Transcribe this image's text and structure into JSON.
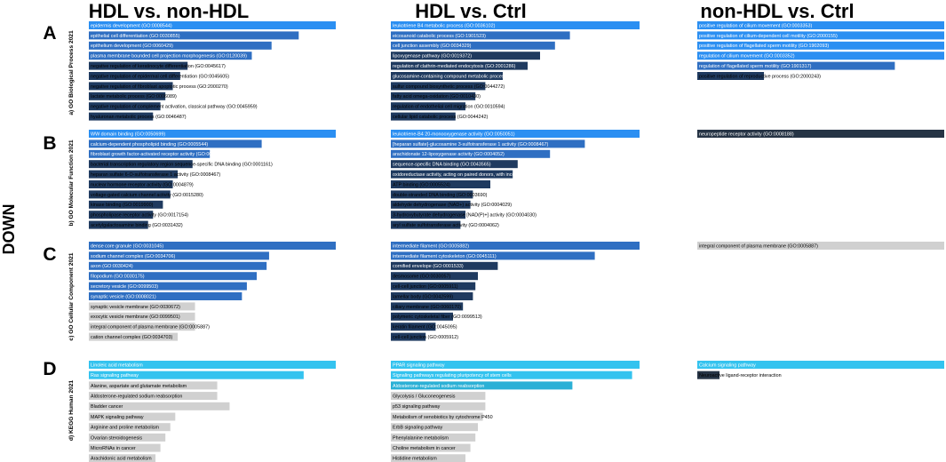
{
  "side_label": "DOWN",
  "column_headers": [
    "HDL vs. non-HDL",
    "HDL vs.  Ctrl",
    "non-HDL vs. Ctrl"
  ],
  "panels": [
    {
      "letter": "A",
      "title": "a) GO Biological Process 2021"
    },
    {
      "letter": "B",
      "title": "b) GO Molecular Function 2021"
    },
    {
      "letter": "C",
      "title": "c) GO Cellular Component 2021"
    },
    {
      "letter": "D",
      "title": "d) KEGG Human 2021"
    }
  ],
  "colors": {
    "bright": "#2b8ff2",
    "mid": "#2f6fc2",
    "dark": "#1f3a5f",
    "dark2": "#263445",
    "gray": "#d0d0d0",
    "kegg_bright": "#34c3ef",
    "kegg_mid": "#2bb0d6",
    "text_light": "#ffffff",
    "text_dark": "#000000"
  },
  "chart_data": [
    {
      "type": "bar",
      "orientation": "horizontal",
      "panel": "A",
      "column": "HDL vs. non-HDL",
      "title": "a) GO Biological Process 2021",
      "categories": [
        "epidermis development (GO:0008544)",
        "epithelial cell differentiation (GO:0030855)",
        "epithelium development (GO:0060429)",
        "plasma membrane bounded cell projection morphogenesis (GO:0120039)",
        "negative regulation of keratinocyte differentiation (GO:0045617)",
        "negative regulation of epidermal cell differentiation (GO:0045605)",
        "negative regulation of fibroblast apoptotic process (GO:2000270)",
        "lactate metabolic process (GO:0006089)",
        "negative regulation of complement activation, classical pathway (GO:0045959)",
        "hyaluronan metabolic process (GO:0046487)"
      ],
      "values": [
        100,
        85,
        74,
        66,
        40,
        37,
        34,
        31,
        29,
        26
      ],
      "color_keys": [
        "bright",
        "mid",
        "mid",
        "mid",
        "dark",
        "dark",
        "dark",
        "dark",
        "dark",
        "dark"
      ]
    },
    {
      "type": "bar",
      "orientation": "horizontal",
      "panel": "A",
      "column": "HDL vs.  Ctrl",
      "title": "a) GO Biological Process 2021",
      "categories": [
        "leukotriene B4 metabolic process (GO:0036102)",
        "eicosanoid catabolic process (GO:1901523)",
        "cell junction assembly (GO:0034329)",
        "lipoxygenase pathway (GO:0019372)",
        "regulation of clathrin-mediated endocytosis (GO:2001286)",
        "glucosamine-containing compound metabolic process (GO:1901071)",
        "sulfur compound biosynthetic process (GO:0044272)",
        "fatty acid omega-oxidation (GO:0010430)",
        "regulation of endothelial cell migration (GO:0010594)",
        "cellular lipid catabolic process (GO:0044242)"
      ],
      "values": [
        100,
        72,
        66,
        60,
        55,
        45,
        38,
        34,
        30,
        26
      ],
      "color_keys": [
        "bright",
        "mid",
        "mid",
        "dark",
        "dark",
        "dark",
        "dark",
        "dark",
        "dark",
        "dark"
      ]
    },
    {
      "type": "bar",
      "orientation": "horizontal",
      "panel": "A",
      "column": "non-HDL vs. Ctrl",
      "title": "a) GO Biological Process 2021",
      "categories": [
        "positive regulation of cilium movement (GO:0003353)",
        "positive regulation of cilium-dependent cell motility (GO:2000155)",
        "positive regulation of flagellated sperm motility (GO:1902093)",
        "regulation of cilium movement (GO:0003352)",
        "regulation of flagellated sperm motility (GO:1901317)",
        "positive regulation of reproductive process (GO:2000243)"
      ],
      "values": [
        100,
        100,
        100,
        100,
        80,
        27
      ],
      "color_keys": [
        "bright",
        "bright",
        "bright",
        "bright",
        "mid",
        "dark"
      ]
    },
    {
      "type": "bar",
      "orientation": "horizontal",
      "panel": "B",
      "column": "HDL vs. non-HDL",
      "title": "b) GO Molecular Function 2021",
      "categories": [
        "WW domain binding (GO:0050699)",
        "calcium-dependent phospholipid binding (GO:0005544)",
        "fibroblast growth factor-activated receptor activity (GO:0005007)",
        "bacterial transcription regulatory region sequence-specific DNA binding (GO:0001161)",
        "heparan sulfate 6-O-sulfotransferase 1 activity (GO:0008467)",
        "nuclear hormone receptor activity (GO:0004879)",
        "voltage-gated calcium channel activity (GO:0015280)",
        "kinase binding (GO:0019900)",
        "phospholipase receptor activity (GO:0017154)",
        "acetylgalactosamine binding (GO:0031432)"
      ],
      "values": [
        100,
        70,
        49,
        42,
        36,
        34,
        33,
        30,
        26,
        24
      ],
      "color_keys": [
        "bright",
        "mid",
        "mid",
        "dark",
        "dark",
        "dark",
        "dark",
        "dark",
        "dark",
        "dark"
      ]
    },
    {
      "type": "bar",
      "orientation": "horizontal",
      "panel": "B",
      "column": "HDL vs.  Ctrl",
      "title": "b) GO Molecular Function 2021",
      "categories": [
        "leukotriene-B4 20-monooxygenase activity (GO:0050051)",
        "[heparan sulfate]-glucosamine 3-sulfotransferase 1 activity (GO:0008467)",
        "arachidonate 12-lipoxygenase activity (GO:0004052)",
        "sequence-specific DNA binding (GO:0043565)",
        "oxidoreductase activity, acting on paired donors, with incorporation or reduction of molecular oxygen, NAD(P)H as one donor (GO:0016709)",
        "ATP binding (GO:0005524)",
        "double-stranded DNA binding (GO:0003690)",
        "aldehyde dehydrogenase (NAD+) activity (GO:0004029)",
        "3-hydroxybutyrate dehydrogenase [NAD(P)+] activity (GO:0004030)",
        "aryl sulfate sulfotransferase activity (GO:0004062)"
      ],
      "values": [
        100,
        78,
        64,
        51,
        49,
        40,
        33,
        32,
        30,
        28
      ],
      "color_keys": [
        "bright",
        "mid",
        "mid",
        "dark",
        "dark",
        "dark",
        "dark",
        "dark",
        "dark",
        "dark"
      ]
    },
    {
      "type": "bar",
      "orientation": "horizontal",
      "panel": "B",
      "column": "non-HDL vs. Ctrl",
      "title": "b) GO Molecular Function 2021",
      "categories": [
        "neuropeptide receptor activity (GO:0008188)"
      ],
      "values": [
        100
      ],
      "color_keys": [
        "dark2"
      ]
    },
    {
      "type": "bar",
      "orientation": "horizontal",
      "panel": "C",
      "column": "HDL vs. non-HDL",
      "title": "c) GO Cellular Component 2021",
      "categories": [
        "dense core granule (GO:0031045)",
        "sodium channel complex (GO:0034706)",
        "axon (GO:0030424)",
        "filopodium (GO:0030175)",
        "secretory vesicle (GO:0099503)",
        "synaptic vesicle (GO:0008021)",
        "synaptic vesicle membrane (GO:0030672)",
        "exocytic vesicle membrane (GO:0099501)",
        "integral component of plasma membrane (GO:0005887)",
        "cation channel complex (GO:0034703)"
      ],
      "values": [
        100,
        73,
        72,
        68,
        64,
        62,
        43,
        43,
        43,
        36
      ],
      "color_keys": [
        "mid",
        "mid",
        "mid",
        "mid",
        "mid",
        "mid",
        "gray",
        "gray",
        "gray",
        "gray"
      ]
    },
    {
      "type": "bar",
      "orientation": "horizontal",
      "panel": "C",
      "column": "HDL vs.  Ctrl",
      "title": "c) GO Cellular Component 2021",
      "categories": [
        "intermediate filament (GO:0005882)",
        "intermediate filament cytoskeleton (GO:0045111)",
        "cornified envelope (GO:0001533)",
        "desmosome (GO:0030057)",
        "cell-cell junction (GO:0005911)",
        "lamellar body (GO:0042599)",
        "ciliary membrane (GO:0060170)",
        "polymeric cytoskeletal fiber (GO:0099513)",
        "keratin filament (GO:0045095)",
        "cell-cell junction (GO:0005912)"
      ],
      "values": [
        100,
        82,
        43,
        35,
        34,
        33,
        29,
        25,
        18,
        14
      ],
      "color_keys": [
        "mid",
        "mid",
        "dark",
        "dark",
        "dark",
        "dark",
        "dark",
        "dark",
        "dark",
        "dark"
      ]
    },
    {
      "type": "bar",
      "orientation": "horizontal",
      "panel": "C",
      "column": "non-HDL vs. Ctrl",
      "title": "c) GO Cellular Component 2021",
      "categories": [
        "integral component of plasma membrane (GO:0005887)"
      ],
      "values": [
        100
      ],
      "color_keys": [
        "gray"
      ]
    },
    {
      "type": "bar",
      "orientation": "horizontal",
      "panel": "D",
      "column": "HDL vs. non-HDL",
      "title": "d) KEGG Human 2021",
      "categories": [
        "Linoleic acid metabolism",
        "Ras signaling pathway",
        "Alanine, aspartate and glutamate metabolism",
        "Aldosterone-regulated sodium reabsorption",
        "Bladder cancer",
        "MAPK signaling pathway",
        "Arginine and proline metabolism",
        "Ovarian steroidogenesis",
        "MicroRNAs in cancer",
        "Arachidonic acid metabolism"
      ],
      "values": [
        100,
        87,
        52,
        52,
        57,
        35,
        33,
        31,
        29,
        27
      ],
      "color_keys": [
        "kegg_bright",
        "kegg_bright",
        "gray",
        "gray",
        "gray",
        "gray",
        "gray",
        "gray",
        "gray",
        "gray"
      ]
    },
    {
      "type": "bar",
      "orientation": "horizontal",
      "panel": "D",
      "column": "HDL vs.  Ctrl",
      "title": "d) KEGG Human 2021",
      "categories": [
        "PPAR signaling pathway",
        "Signaling pathways regulating pluripotency of stem cells",
        "Aldosterone-regulated sodium reabsorption",
        "Glycolysis / Gluconeogenesis",
        "p53 signaling pathway",
        "Metabolism of xenobiotics by cytochrome P450",
        "ErbB signaling pathway",
        "Phenylalanine metabolism",
        "Choline metabolism in cancer",
        "Histidine metabolism"
      ],
      "values": [
        100,
        97,
        73,
        38,
        38,
        37,
        35,
        34,
        32,
        30
      ],
      "color_keys": [
        "kegg_bright",
        "kegg_bright",
        "kegg_mid",
        "gray",
        "gray",
        "gray",
        "gray",
        "gray",
        "gray",
        "gray"
      ]
    },
    {
      "type": "bar",
      "orientation": "horizontal",
      "panel": "D",
      "column": "non-HDL vs. Ctrl",
      "title": "d) KEGG Human 2021",
      "categories": [
        "Calcium signaling pathway",
        "Neuroactive ligand-receptor interaction"
      ],
      "values": [
        100,
        9
      ],
      "color_keys": [
        "kegg_bright",
        "dark2"
      ]
    }
  ]
}
